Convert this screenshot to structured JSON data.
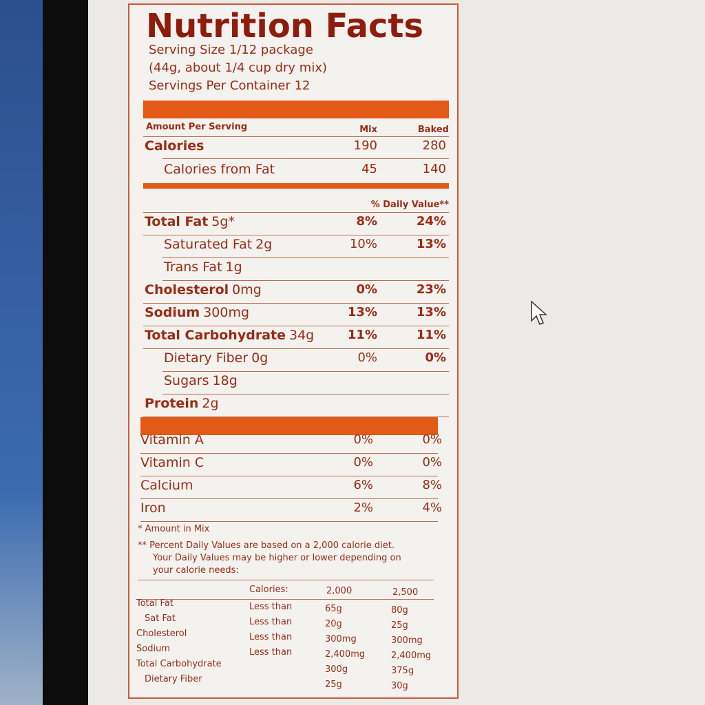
{
  "label": {
    "title": "Nutrition Facts",
    "serving": [
      "Serving Size 1/12 package",
      "(44g, about 1/4 cup dry mix)",
      "Servings Per Container 12"
    ],
    "columns": {
      "amount": "Amount Per Serving",
      "mix": "Mix",
      "baked": "Baked"
    },
    "calories": [
      {
        "name": "Calories",
        "mix": "190",
        "baked": "280",
        "style": "bold"
      },
      {
        "name": "Calories from Fat",
        "mix": "45",
        "baked": "140",
        "style": "sub"
      }
    ],
    "daily_value": "% Daily Value**",
    "nutrients": [
      {
        "name": "Total Fat",
        "amount": "5g*",
        "mix": "8%",
        "baked": "24%",
        "style": "bold"
      },
      {
        "name": "Saturated Fat",
        "amount": "2g",
        "mix": "10%",
        "baked": "13%",
        "style": "sub"
      },
      {
        "name": "Trans Fat",
        "amount": "1g",
        "style": "sub"
      },
      {
        "name": "Cholesterol",
        "amount": "0mg",
        "mix": "0%",
        "baked": "23%",
        "style": "bold"
      },
      {
        "name": "Sodium",
        "amount": "300mg",
        "mix": "13%",
        "baked": "13%",
        "style": "bold"
      },
      {
        "name": "Total Carbohydrate",
        "amount": "34g",
        "mix": "11%",
        "baked": "11%",
        "style": "bold"
      },
      {
        "name": "Dietary Fiber",
        "amount": "0g",
        "mix": "0%",
        "baked": "0%",
        "style": "sub"
      },
      {
        "name": "Sugars",
        "amount": "18g",
        "style": "sub"
      },
      {
        "name": "Protein",
        "amount": "2g",
        "style": "bold"
      }
    ],
    "vitamins": [
      {
        "name": "Vitamin A",
        "mix": "0%",
        "baked": "0%"
      },
      {
        "name": "Vitamin C",
        "mix": "0%",
        "baked": "0%"
      },
      {
        "name": "Calcium",
        "mix": "6%",
        "baked": "8%"
      },
      {
        "name": "Iron",
        "mix": "2%",
        "baked": "4%"
      }
    ],
    "footnotes": [
      "* Amount in Mix",
      "** Percent Daily Values are based on a 2,000 calorie diet.",
      "Your Daily Values may be higher or lower depending on",
      "your calorie needs:"
    ],
    "dv_table": {
      "header": [
        "Calories:",
        "2,000",
        "2,500"
      ],
      "rows": [
        {
          "name": "Total Fat",
          "limit": "Less than",
          "a": "65g",
          "b": "80g"
        },
        {
          "name": "Sat Fat",
          "limit": "Less than",
          "a": "20g",
          "b": "25g"
        },
        {
          "name": "Cholesterol",
          "limit": "Less than",
          "a": "300mg",
          "b": "300mg"
        },
        {
          "name": "Sodium",
          "limit": "Less than",
          "a": "2,400mg",
          "b": "2,400mg"
        },
        {
          "name": "Total Carbohydrate",
          "a": "300g",
          "b": "375g"
        },
        {
          "name": "Dietary Fiber",
          "a": "25g",
          "b": "30g"
        }
      ]
    }
  }
}
